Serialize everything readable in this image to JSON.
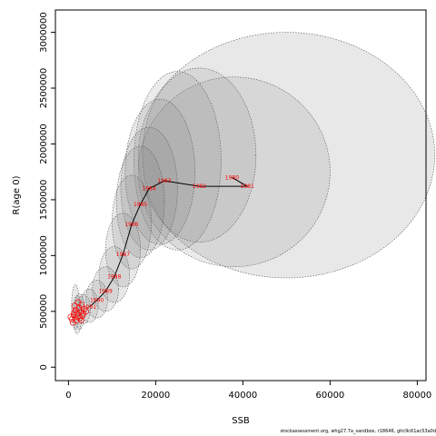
{
  "chart_data": {
    "type": "scatter",
    "xlabel": "SSB",
    "ylabel": "R(age 0)",
    "xlim": [
      -3000,
      82000
    ],
    "ylim": [
      -120000,
      3200000
    ],
    "x_ticks": [
      0,
      20000,
      40000,
      60000,
      80000
    ],
    "x_tick_labels": [
      "0",
      "20000",
      "40000",
      "60000",
      "80000"
    ],
    "y_ticks": [
      0,
      500000,
      1000000,
      1500000,
      2000000,
      2500000,
      3000000
    ],
    "y_tick_labels": [
      "0",
      "500000",
      "1000000",
      "1500000",
      "2000000",
      "2500000",
      "3000000"
    ],
    "grid": false,
    "trajectory": [
      {
        "year": "1980",
        "ssb": 37500,
        "rec": 1700000
      },
      {
        "year": "1981",
        "ssb": 41000,
        "rec": 1620000
      },
      {
        "year": "1982",
        "ssb": 30000,
        "rec": 1620000
      },
      {
        "year": "1983",
        "ssb": 22000,
        "rec": 1670000
      },
      {
        "year": "1984",
        "ssb": 18500,
        "rec": 1600000
      },
      {
        "year": "1985",
        "ssb": 16500,
        "rec": 1460000
      },
      {
        "year": "1986",
        "ssb": 14500,
        "rec": 1280000
      },
      {
        "year": "1987",
        "ssb": 12500,
        "rec": 1010000
      },
      {
        "year": "1988",
        "ssb": 10500,
        "rec": 810000
      },
      {
        "year": "1989",
        "ssb": 8500,
        "rec": 680000
      },
      {
        "year": "1990",
        "ssb": 6500,
        "rec": 600000
      },
      {
        "year": "1991",
        "ssb": 4800,
        "rec": 540000
      }
    ],
    "cluster_points": [
      {
        "ssb": 800,
        "rec": 430000
      },
      {
        "ssb": 1200,
        "rec": 470000
      },
      {
        "ssb": 1600,
        "rec": 510000
      },
      {
        "ssb": 2000,
        "rec": 480000
      },
      {
        "ssb": 2400,
        "rec": 530000
      },
      {
        "ssb": 2800,
        "rec": 500000
      },
      {
        "ssb": 3200,
        "rec": 460000
      },
      {
        "ssb": 3600,
        "rec": 520000
      },
      {
        "ssb": 1000,
        "rec": 400000
      },
      {
        "ssb": 1800,
        "rec": 420000
      },
      {
        "ssb": 2600,
        "rec": 440000
      },
      {
        "ssb": 3000,
        "rec": 560000
      },
      {
        "ssb": 1400,
        "rec": 550000
      },
      {
        "ssb": 2200,
        "rec": 580000
      },
      {
        "ssb": 500,
        "rec": 450000
      },
      {
        "ssb": 3400,
        "rec": 480000
      },
      {
        "ssb": 4000,
        "rec": 500000
      },
      {
        "ssb": 2100,
        "rec": 450000
      },
      {
        "ssb": 1300,
        "rec": 490000
      },
      {
        "ssb": 2900,
        "rec": 420000
      }
    ],
    "ellipses": [
      {
        "cx": 50000,
        "cy": 1900000,
        "rx": 34000,
        "ry": 1100000,
        "shade": 0.18
      },
      {
        "cx": 38000,
        "cy": 1750000,
        "rx": 22000,
        "ry": 850000,
        "shade": 0.16
      },
      {
        "cx": 30000,
        "cy": 1900000,
        "rx": 13000,
        "ry": 780000,
        "shade": 0.16
      },
      {
        "cx": 25000,
        "cy": 1850000,
        "rx": 10000,
        "ry": 800000,
        "shade": 0.16
      },
      {
        "cx": 21000,
        "cy": 1750000,
        "rx": 8000,
        "ry": 650000,
        "shade": 0.18
      },
      {
        "cx": 18500,
        "cy": 1600000,
        "rx": 6500,
        "ry": 550000,
        "shade": 0.18
      },
      {
        "cx": 16500,
        "cy": 1480000,
        "rx": 5500,
        "ry": 500000,
        "shade": 0.18
      },
      {
        "cx": 14500,
        "cy": 1300000,
        "rx": 4500,
        "ry": 420000,
        "shade": 0.18
      },
      {
        "cx": 12500,
        "cy": 1050000,
        "rx": 4000,
        "ry": 330000,
        "shade": 0.18
      },
      {
        "cx": 10500,
        "cy": 830000,
        "rx": 3500,
        "ry": 250000,
        "shade": 0.18
      },
      {
        "cx": 8500,
        "cy": 700000,
        "rx": 3000,
        "ry": 200000,
        "shade": 0.18
      },
      {
        "cx": 6500,
        "cy": 610000,
        "rx": 2500,
        "ry": 170000,
        "shade": 0.18
      },
      {
        "cx": 4800,
        "cy": 550000,
        "rx": 2000,
        "ry": 150000,
        "shade": 0.18
      },
      {
        "cx": 3500,
        "cy": 520000,
        "rx": 1500,
        "ry": 130000,
        "shade": 0.18
      },
      {
        "cx": 2500,
        "cy": 500000,
        "rx": 1200,
        "ry": 160000,
        "shade": 0.18
      },
      {
        "cx": 2000,
        "cy": 470000,
        "rx": 1000,
        "ry": 170000,
        "shade": 0.18
      },
      {
        "cx": 1600,
        "cy": 540000,
        "rx": 900,
        "ry": 200000,
        "shade": 0.18
      }
    ],
    "colors": {
      "trajectory_line": "#000000",
      "year_label": "#ff0000",
      "ellipse_fill": "#808080",
      "ellipse_stroke": "#555555"
    }
  },
  "footer": "stockassessment.org, whg27.7a_sandbox, r18646, gitc9c61ac53a0d"
}
